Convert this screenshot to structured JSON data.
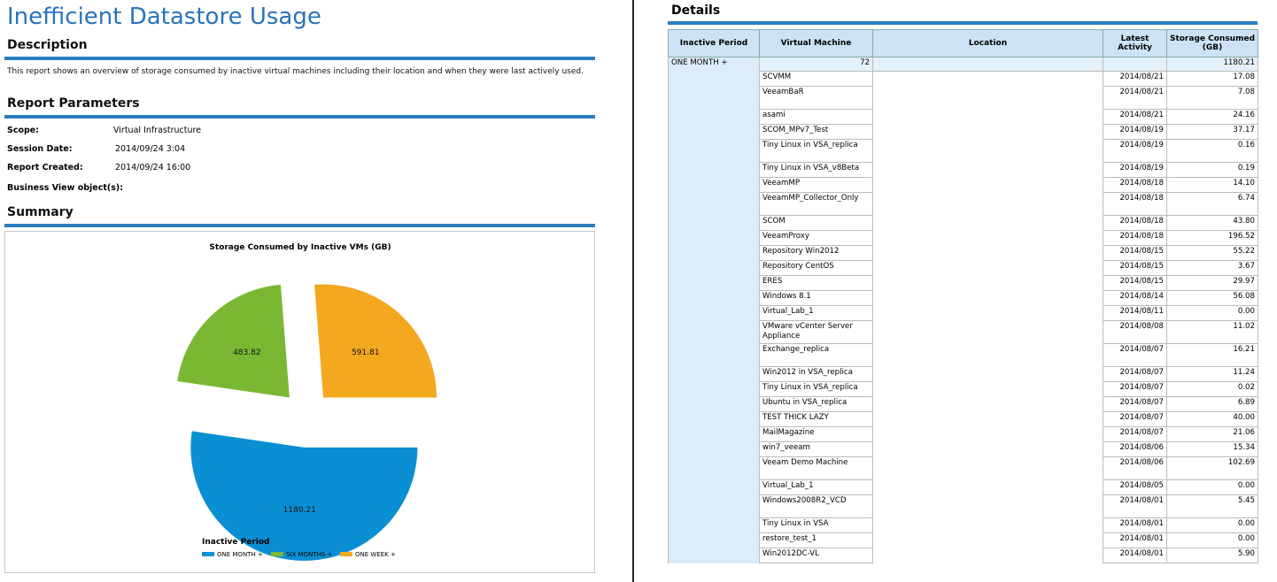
{
  "report": {
    "title": "Inefficient Datastore Usage",
    "description_heading": "Description",
    "description": "This report shows an overview of storage consumed by inactive virtual machines including their location and when they were last actively used.",
    "parameters_heading": "Report Parameters",
    "parameters": [
      {
        "label": "Scope:",
        "value": "Virtual Infrastructure"
      },
      {
        "label": "Session Date:",
        "value": "2014/09/24 3:04"
      },
      {
        "label": "Report Created:",
        "value": "2014/09/24 16:00"
      },
      {
        "label": "Business View object(s):",
        "value": ""
      }
    ],
    "summary_heading": "Summary"
  },
  "chart_data": {
    "type": "pie",
    "title": "Storage Consumed by Inactive VMs (GB)",
    "legend_title": "Inactive Period",
    "legend_position": "bottom-left",
    "slices": [
      {
        "name": "ONE MONTH +",
        "value": 1180.21,
        "color": "#0b8fd3"
      },
      {
        "name": "SIX MONTHS +",
        "value": 483.82,
        "color": "#7ab834"
      },
      {
        "name": "ONE WEEK +",
        "value": 591.81,
        "color": "#f4a820"
      }
    ]
  },
  "details": {
    "heading": "Details",
    "columns": [
      "Inactive Period",
      "Virtual Machine",
      "Location",
      "Latest Activity",
      "Storage Consumed (GB)"
    ],
    "group": {
      "period": "ONE MONTH +",
      "vm_count": "72",
      "total": "1180.21"
    },
    "rows": [
      {
        "vm": "SCVMM",
        "date": "2014/08/21",
        "gb": "17.08"
      },
      {
        "vm": "VeeamBaR",
        "date": "2014/08/21",
        "gb": "7.08"
      },
      {
        "vm": "asami",
        "date": "2014/08/21",
        "gb": "24.16"
      },
      {
        "vm": "SCOM_MPv7_Test",
        "date": "2014/08/19",
        "gb": "37.17"
      },
      {
        "vm": "Tiny Linux in VSA_replica",
        "date": "2014/08/19",
        "gb": "0.16"
      },
      {
        "vm": "Tiny Linux in VSA_v8Beta",
        "date": "2014/08/19",
        "gb": "0.19"
      },
      {
        "vm": "VeeamMP",
        "date": "2014/08/18",
        "gb": "14.10"
      },
      {
        "vm": "VeeamMP_Collector_Only",
        "date": "2014/08/18",
        "gb": "6.74"
      },
      {
        "vm": "SCOM",
        "date": "2014/08/18",
        "gb": "43.80"
      },
      {
        "vm": "VeeamProxy",
        "date": "2014/08/18",
        "gb": "196.52"
      },
      {
        "vm": "Repository Win2012",
        "date": "2014/08/15",
        "gb": "55.22"
      },
      {
        "vm": "Repository CentOS",
        "date": "2014/08/15",
        "gb": "3.67"
      },
      {
        "vm": "ERES",
        "date": "2014/08/15",
        "gb": "29.97"
      },
      {
        "vm": "Windows 8.1",
        "date": "2014/08/14",
        "gb": "56.08"
      },
      {
        "vm": "Virtual_Lab_1",
        "date": "2014/08/11",
        "gb": "0.00"
      },
      {
        "vm": "VMware vCenter Server Appliance",
        "date": "2014/08/08",
        "gb": "11.02"
      },
      {
        "vm": "Exchange_replica",
        "date": "2014/08/07",
        "gb": "16.21"
      },
      {
        "vm": "Win2012 in VSA_replica",
        "date": "2014/08/07",
        "gb": "11.24"
      },
      {
        "vm": "Tiny Linux in VSA_replica",
        "date": "2014/08/07",
        "gb": "0.02"
      },
      {
        "vm": "Ubuntu in VSA_replica",
        "date": "2014/08/07",
        "gb": "6.89"
      },
      {
        "vm": "TEST THICK LAZY",
        "date": "2014/08/07",
        "gb": "40.00"
      },
      {
        "vm": "MailMagazine",
        "date": "2014/08/07",
        "gb": "21.06"
      },
      {
        "vm": "win7_veeam",
        "date": "2014/08/06",
        "gb": "15.34"
      },
      {
        "vm": "Veeam Demo Machine",
        "date": "2014/08/06",
        "gb": "102.69"
      },
      {
        "vm": "Virtual_Lab_1",
        "date": "2014/08/05",
        "gb": "0.00"
      },
      {
        "vm": "Windows2008R2_VCD",
        "date": "2014/08/01",
        "gb": "5.45"
      },
      {
        "vm": "Tiny Linux in VSA",
        "date": "2014/08/01",
        "gb": "0.00"
      },
      {
        "vm": "restore_test_1",
        "date": "2014/08/01",
        "gb": "0.00"
      },
      {
        "vm": "Win2012DC-VL",
        "date": "2014/08/01",
        "gb": "5.90"
      }
    ]
  }
}
